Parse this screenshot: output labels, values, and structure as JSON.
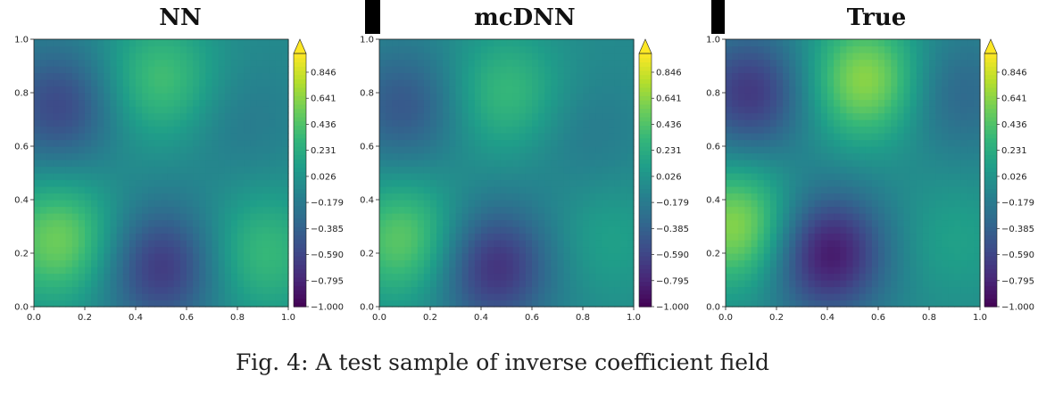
{
  "caption": "Fig. 4: A test sample of inverse coefficient field",
  "chart_data": [
    {
      "type": "heatmap",
      "title": "NN",
      "xlim": [
        0.0,
        1.0
      ],
      "ylim": [
        0.0,
        1.0
      ],
      "x_ticks": [
        "0.0",
        "0.2",
        "0.4",
        "0.6",
        "0.8",
        "1.0"
      ],
      "y_ticks": [
        "0.0",
        "0.2",
        "0.4",
        "0.6",
        "0.8",
        "1.0"
      ],
      "colorbar": {
        "min": -1.0,
        "max": 0.846,
        "extend": "max",
        "ticks": [
          "0.846",
          "0.641",
          "0.436",
          "0.231",
          "0.026",
          "−0.179",
          "−0.385",
          "−0.590",
          "−0.795",
          "−1.000"
        ]
      },
      "field_features": [
        {
          "x": 0.1,
          "y": 0.75,
          "value": -0.6
        },
        {
          "x": 0.5,
          "y": 0.15,
          "value": -0.7
        },
        {
          "x": 0.1,
          "y": 0.25,
          "value": 0.45
        },
        {
          "x": 0.5,
          "y": 0.85,
          "value": 0.3
        },
        {
          "x": 0.9,
          "y": 0.2,
          "value": 0.25
        },
        {
          "x": 0.8,
          "y": 0.7,
          "value": -0.25
        }
      ]
    },
    {
      "type": "heatmap",
      "title": "mcDNN",
      "xlim": [
        0.0,
        1.0
      ],
      "ylim": [
        0.0,
        1.0
      ],
      "x_ticks": [
        "0.0",
        "0.2",
        "0.4",
        "0.6",
        "0.8",
        "1.0"
      ],
      "y_ticks": [
        "0.0",
        "0.2",
        "0.4",
        "0.6",
        "0.8",
        "1.0"
      ],
      "colorbar": {
        "min": -1.0,
        "max": 0.846,
        "extend": "max",
        "ticks": [
          "0.846",
          "0.641",
          "0.436",
          "0.231",
          "0.026",
          "−0.179",
          "−0.385",
          "−0.590",
          "−0.795",
          "−1.000"
        ]
      },
      "field_features": [
        {
          "x": 0.1,
          "y": 0.75,
          "value": -0.5
        },
        {
          "x": 0.45,
          "y": 0.15,
          "value": -0.75
        },
        {
          "x": 0.1,
          "y": 0.25,
          "value": 0.4
        },
        {
          "x": 0.5,
          "y": 0.8,
          "value": 0.25
        },
        {
          "x": 0.9,
          "y": 0.25,
          "value": 0.05
        },
        {
          "x": 0.8,
          "y": 0.65,
          "value": -0.25
        }
      ]
    },
    {
      "type": "heatmap",
      "title": "True",
      "xlim": [
        0.0,
        1.0
      ],
      "ylim": [
        0.0,
        1.0
      ],
      "x_ticks": [
        "0.0",
        "0.2",
        "0.4",
        "0.6",
        "0.8",
        "1.0"
      ],
      "y_ticks": [
        "0.0",
        "0.2",
        "0.4",
        "0.6",
        "0.8",
        "1.0"
      ],
      "colorbar": {
        "min": -1.0,
        "max": 0.846,
        "extend": "max",
        "ticks": [
          "0.846",
          "0.641",
          "0.436",
          "0.231",
          "0.026",
          "−0.179",
          "−0.385",
          "−0.590",
          "−0.795",
          "−1.000"
        ]
      },
      "field_features": [
        {
          "x": 0.1,
          "y": 0.8,
          "value": -0.7
        },
        {
          "x": 0.4,
          "y": 0.2,
          "value": -0.9
        },
        {
          "x": 0.05,
          "y": 0.3,
          "value": 0.55
        },
        {
          "x": 0.55,
          "y": 0.85,
          "value": 0.55
        },
        {
          "x": 0.9,
          "y": 0.8,
          "value": -0.4
        },
        {
          "x": 0.9,
          "y": 0.25,
          "value": 0.05
        }
      ]
    }
  ]
}
